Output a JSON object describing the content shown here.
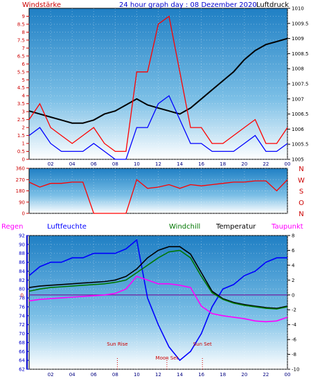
{
  "chart_data": [
    {
      "type": "line",
      "panel": "wind-pressure",
      "title": "24 hour graph day : 08 Dezember 2020",
      "left_axis_label": "Windstärke",
      "right_axis_label": "Luftdruck",
      "ylim_left": [
        0,
        9.5
      ],
      "ylim_right": [
        1005,
        1010
      ],
      "left_ticks": [
        "0",
        "0.5",
        "1",
        "1.5",
        "2",
        "2.5",
        "3",
        "3.5",
        "4",
        "4.5",
        "5",
        "5.5",
        "6",
        "6.5",
        "7",
        "7.5",
        "8",
        "8.5",
        "9"
      ],
      "right_ticks": [
        "1005",
        "1005.5",
        "1006",
        "1006.5",
        "1007",
        "1007.5",
        "1008",
        "1008.5",
        "1009",
        "1009.5",
        "1010"
      ],
      "x_hours": [
        0,
        1,
        2,
        3,
        4,
        5,
        6,
        7,
        8,
        9,
        10,
        11,
        12,
        13,
        14,
        15,
        16,
        17,
        18,
        19,
        20,
        21,
        22,
        23,
        24
      ],
      "x_tick_labels": [
        "02",
        "04",
        "06",
        "08",
        "10",
        "12",
        "14",
        "16",
        "18",
        "20",
        "22",
        "00"
      ],
      "series": [
        {
          "name": "Luftdruck",
          "axis": "right",
          "color": "#000000",
          "values": [
            1006.6,
            1006.5,
            1006.4,
            1006.3,
            1006.2,
            1006.2,
            1006.3,
            1006.5,
            1006.6,
            1006.8,
            1007.0,
            1006.8,
            1006.7,
            1006.6,
            1006.5,
            1006.7,
            1007.0,
            1007.3,
            1007.6,
            1007.9,
            1008.3,
            1008.6,
            1008.8,
            1008.9,
            1009.0
          ]
        },
        {
          "name": "Windstärke max",
          "axis": "left",
          "color": "#ff0000",
          "values": [
            2.5,
            3.5,
            2,
            1.5,
            1,
            1.5,
            2,
            1,
            0.5,
            0.5,
            5.5,
            5.5,
            8.5,
            9,
            5.5,
            2,
            2,
            1,
            1,
            1.5,
            2,
            2.5,
            1,
            1,
            2
          ]
        },
        {
          "name": "Windstärke avg",
          "axis": "left",
          "color": "#0000ff",
          "values": [
            1.5,
            2,
            1,
            0.5,
            0.5,
            0.5,
            1,
            0.5,
            0,
            0,
            2,
            2,
            3.5,
            4,
            2.5,
            1,
            1,
            0.5,
            0.5,
            0.5,
            1,
            1.5,
            0.5,
            0.5,
            1
          ]
        }
      ]
    },
    {
      "type": "line",
      "panel": "wind-direction",
      "ylim_left": [
        0,
        360
      ],
      "left_ticks": [
        "0",
        "90",
        "180",
        "270",
        "360"
      ],
      "right_labels": [
        "N",
        "W",
        "S",
        "O",
        "N"
      ],
      "x_hours": [
        0,
        1,
        2,
        3,
        4,
        5,
        6,
        7,
        8,
        9,
        10,
        11,
        12,
        13,
        14,
        15,
        16,
        17,
        18,
        19,
        20,
        21,
        22,
        23,
        24
      ],
      "series": [
        {
          "name": "Windrichtung",
          "color": "#ff0000",
          "values": [
            250,
            210,
            240,
            240,
            250,
            250,
            0,
            0,
            0,
            0,
            270,
            200,
            210,
            230,
            200,
            230,
            220,
            230,
            240,
            250,
            250,
            260,
            260,
            180,
            270
          ]
        }
      ]
    },
    {
      "type": "line",
      "panel": "humidity-temperature",
      "legend": [
        "Regen",
        "Luftfeuchte",
        "Windchill",
        "Temperatur",
        "Taupunkt"
      ],
      "legend_colors": [
        "#ff00ff",
        "#0000ff",
        "#007700",
        "#000000",
        "#ff00ff"
      ],
      "ylim_left": [
        62,
        92
      ],
      "ylim_right": [
        -10,
        8
      ],
      "left_ticks": [
        "62",
        "64",
        "66",
        "68",
        "70",
        "72",
        "74",
        "76",
        "78",
        "80",
        "82",
        "84",
        "86",
        "88",
        "90",
        "92"
      ],
      "right_ticks": [
        "-10",
        "-8",
        "-6",
        "-4",
        "-2",
        "0",
        "2",
        "4",
        "6",
        "8"
      ],
      "zero_marker": "0",
      "x_tick_labels": [
        "02",
        "04",
        "06",
        "08",
        "10",
        "12",
        "14",
        "16",
        "18",
        "20",
        "22",
        "00"
      ],
      "annotations": [
        "Sun Rise",
        "Moon Set",
        "Sun Set"
      ],
      "annotation_hours": [
        8.2,
        12.8,
        16.1
      ],
      "x_hours": [
        0,
        1,
        2,
        3,
        4,
        5,
        6,
        7,
        8,
        9,
        10,
        11,
        12,
        13,
        14,
        15,
        16,
        17,
        18,
        19,
        20,
        21,
        22,
        23,
        24
      ],
      "series": [
        {
          "name": "Luftfeuchte",
          "axis": "left",
          "color": "#0000ff",
          "values": [
            83,
            85,
            86,
            86,
            87,
            87,
            88,
            88,
            88,
            89,
            91,
            78,
            72,
            67,
            64,
            66,
            70,
            76,
            80,
            81,
            83,
            84,
            86,
            87,
            87
          ]
        },
        {
          "name": "Temperatur",
          "axis": "right",
          "color": "#000000",
          "values": [
            1.0,
            1.2,
            1.3,
            1.4,
            1.5,
            1.6,
            1.7,
            1.8,
            2.0,
            2.5,
            3.5,
            5.0,
            6.0,
            6.5,
            6.5,
            5.5,
            3.0,
            0.5,
            -0.5,
            -1.0,
            -1.3,
            -1.5,
            -1.7,
            -1.8,
            -1.5
          ]
        },
        {
          "name": "Windchill",
          "axis": "right",
          "color": "#007700",
          "values": [
            0.5,
            0.8,
            1.0,
            1.1,
            1.2,
            1.3,
            1.4,
            1.5,
            1.7,
            2.0,
            3.0,
            4.0,
            5.0,
            5.8,
            6.0,
            5.0,
            2.5,
            0.3,
            -0.6,
            -1.1,
            -1.4,
            -1.6,
            -1.8,
            -1.9,
            -1.6
          ]
        },
        {
          "name": "Taupunkt",
          "axis": "right",
          "color": "#ff00ff",
          "values": [
            -0.8,
            -0.6,
            -0.5,
            -0.4,
            -0.3,
            -0.2,
            -0.1,
            0.0,
            0.2,
            0.8,
            2.5,
            2.0,
            1.5,
            1.5,
            1.3,
            1.0,
            -1.5,
            -2.5,
            -2.8,
            -3.0,
            -3.2,
            -3.5,
            -3.6,
            -3.5,
            -3.0
          ]
        }
      ]
    }
  ]
}
